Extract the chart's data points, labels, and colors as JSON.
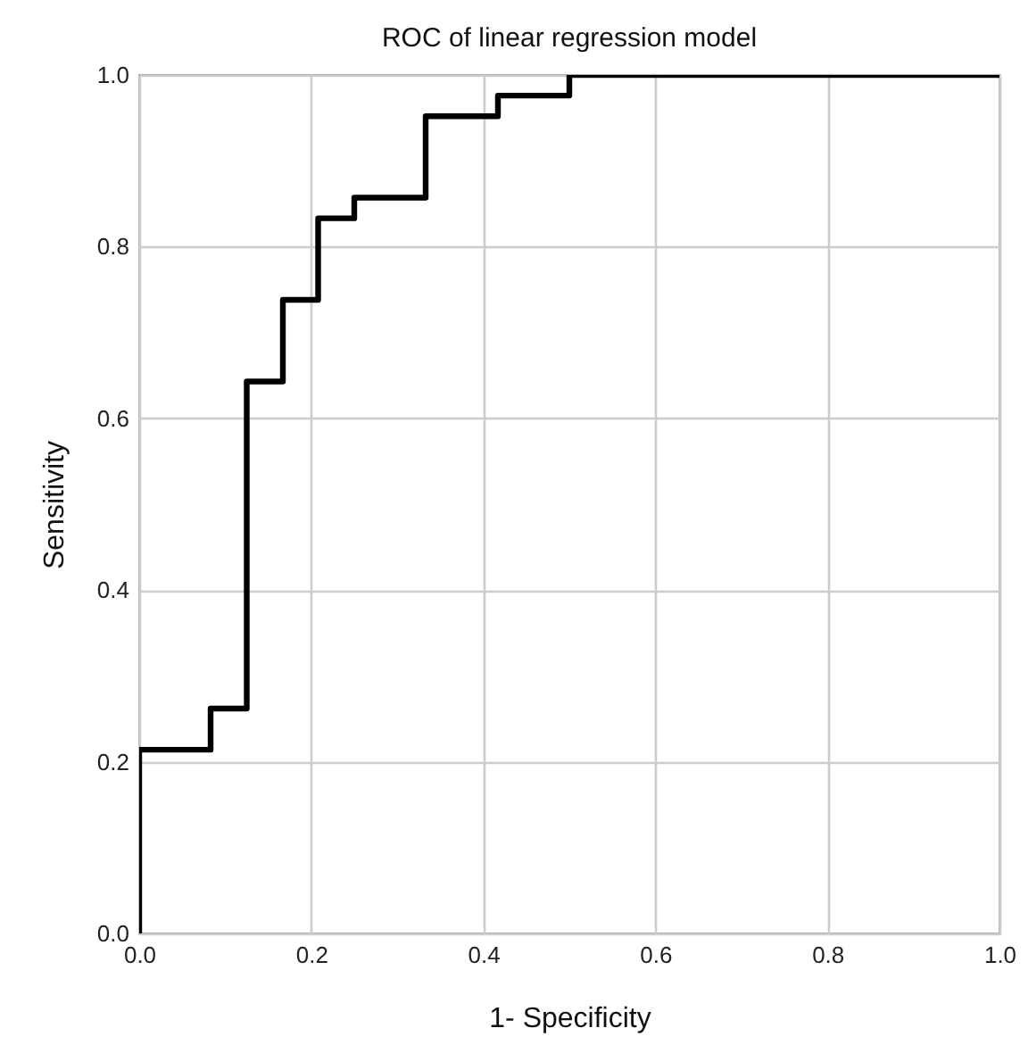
{
  "chart_data": {
    "type": "step",
    "title": "ROC of linear regression model",
    "xlabel": "1- Specificity",
    "ylabel": "Sensitivity",
    "x": [
      0,
      0,
      0.083,
      0.125,
      0.167,
      0.208,
      0.25,
      0.333,
      0.417,
      0.5,
      1
    ],
    "series": [
      {
        "color": "#000000",
        "values": [
          0,
          0.214,
          0.262,
          0.643,
          0.738,
          0.833,
          0.857,
          0.952,
          0.976,
          1,
          1
        ]
      }
    ],
    "xlim": [
      0,
      1
    ],
    "ylim": [
      0,
      1
    ],
    "xticks": [
      {
        "value": 0,
        "label": "0.0"
      },
      0.2,
      0.4,
      0.6,
      0.8,
      {
        "value": 1,
        "label": "1.0"
      }
    ],
    "yticks": [
      {
        "value": 0,
        "label": "0.0"
      },
      0.2,
      0.4,
      0.6,
      0.8,
      {
        "value": 1,
        "label": "1.0"
      }
    ],
    "grid": true,
    "marker": "none",
    "line_style": "solid"
  }
}
